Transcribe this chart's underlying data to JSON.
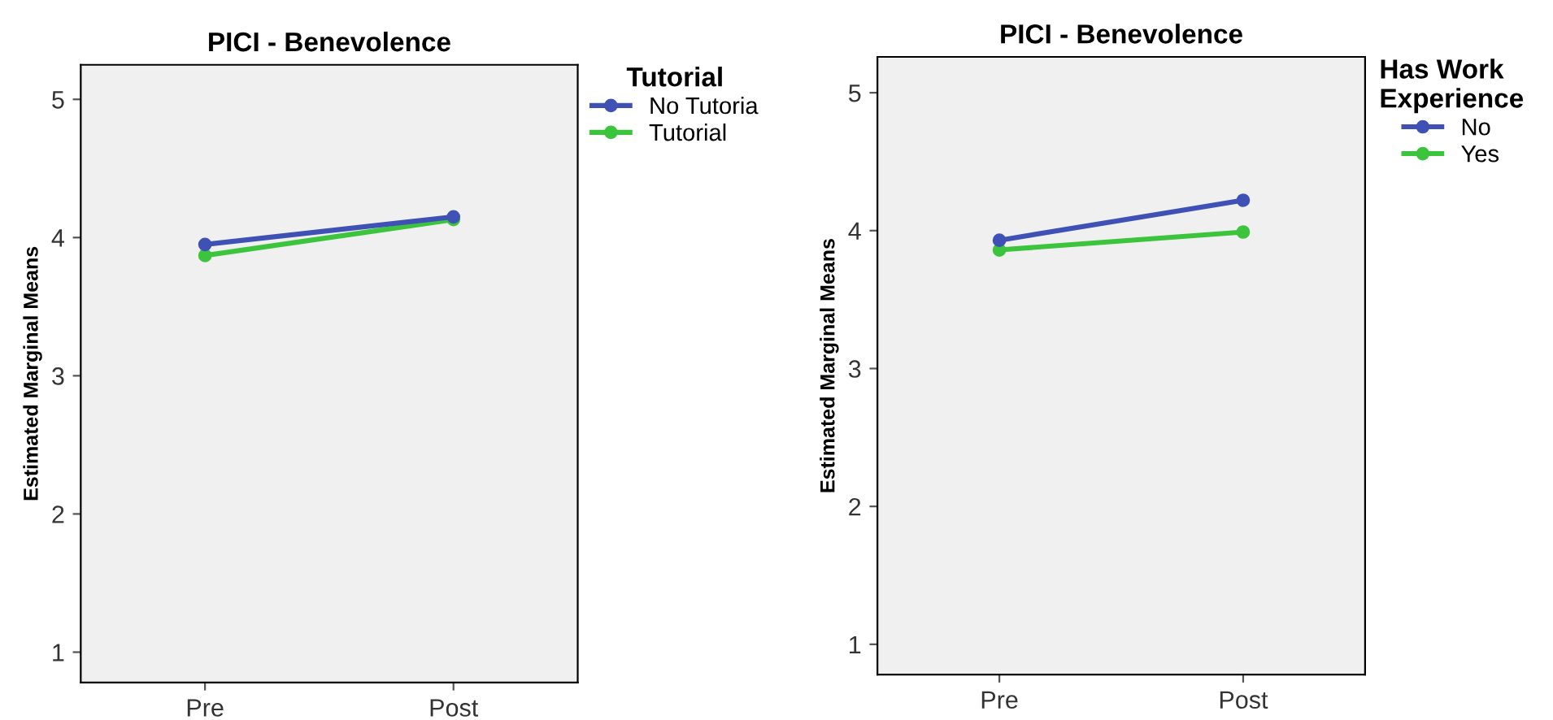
{
  "chart_data": [
    {
      "type": "line",
      "title": "PICI - Benevolence",
      "ylabel": "Estimated Marginal Means",
      "legend_title": "Tutorial",
      "categories": [
        "Pre",
        "Post"
      ],
      "ylim": [
        0.78,
        5.25
      ],
      "yticks": [
        1,
        2,
        3,
        4,
        5
      ],
      "grid": false,
      "legend": "top right",
      "marker": "circle",
      "line_style": "solid",
      "series": [
        {
          "name": "No Tutoria",
          "color": "#3f51b5",
          "values": [
            3.95,
            4.15
          ]
        },
        {
          "name": "Tutorial",
          "color": "#3cc43c",
          "values": [
            3.87,
            4.13
          ]
        }
      ]
    },
    {
      "type": "line",
      "title": "PICI - Benevolence",
      "ylabel": "Estimated Marginal Means",
      "legend_title": "Has Work\nExperience",
      "categories": [
        "Pre",
        "Post"
      ],
      "ylim": [
        0.78,
        5.26
      ],
      "yticks": [
        1,
        2,
        3,
        4,
        5
      ],
      "grid": false,
      "legend": "top right",
      "marker": "circle",
      "line_style": "solid",
      "series": [
        {
          "name": "No",
          "color": "#3f51b5",
          "values": [
            3.93,
            4.22
          ]
        },
        {
          "name": "Yes",
          "color": "#3cc43c",
          "values": [
            3.86,
            3.99
          ]
        }
      ]
    }
  ]
}
